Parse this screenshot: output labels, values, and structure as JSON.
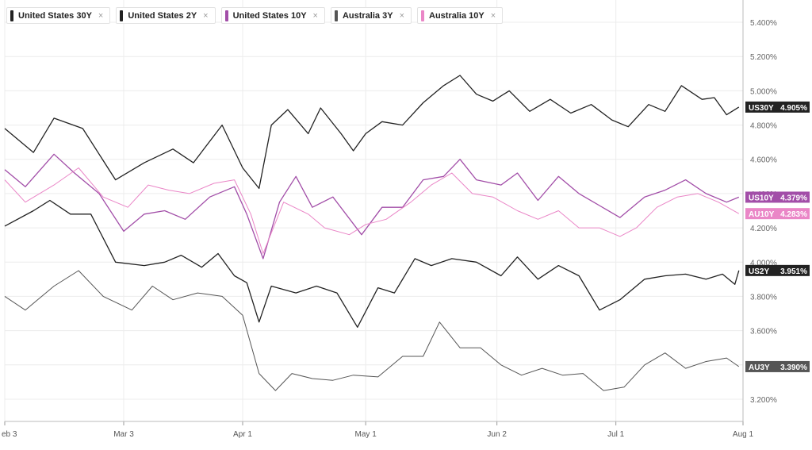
{
  "legend": [
    {
      "label": "United States 30Y",
      "color": "#222222",
      "close": "×"
    },
    {
      "label": "United States 2Y",
      "color": "#222222",
      "close": "×"
    },
    {
      "label": "United States 10Y",
      "color": "#a24ea8",
      "close": "×"
    },
    {
      "label": "Australia 3Y",
      "color": "#555555",
      "close": "×"
    },
    {
      "label": "Australia 10Y",
      "color": "#ea86c7",
      "close": "×"
    }
  ],
  "chart_data": {
    "type": "line",
    "title": "",
    "xlabel": "",
    "ylabel": "",
    "x_ticks": [
      "eb 3",
      "Mar 3",
      "Apr 1",
      "May 1",
      "Jun 2",
      "Jul 1",
      "Aug 1"
    ],
    "y_ticks": [
      "3.200%",
      "3.400%",
      "3.600%",
      "3.800%",
      "4.000%",
      "4.200%",
      "4.400%",
      "4.600%",
      "4.800%",
      "5.000%",
      "5.200%",
      "5.400%"
    ],
    "ylim": [
      3.07,
      5.53
    ],
    "xlim": [
      "2024-02-03",
      "2024-08-01"
    ],
    "grid": true,
    "series": [
      {
        "name": "United States 30Y",
        "short": "US30Y",
        "last_label": "4.905%",
        "color": "#222222",
        "width": 1.3,
        "points": [
          [
            "2024-02-03",
            4.78
          ],
          [
            "2024-02-10",
            4.64
          ],
          [
            "2024-02-15",
            4.84
          ],
          [
            "2024-02-22",
            4.78
          ],
          [
            "2024-03-01",
            4.48
          ],
          [
            "2024-03-08",
            4.58
          ],
          [
            "2024-03-15",
            4.66
          ],
          [
            "2024-03-20",
            4.58
          ],
          [
            "2024-03-27",
            4.8
          ],
          [
            "2024-04-01",
            4.55
          ],
          [
            "2024-04-05",
            4.43
          ],
          [
            "2024-04-08",
            4.8
          ],
          [
            "2024-04-12",
            4.89
          ],
          [
            "2024-04-17",
            4.75
          ],
          [
            "2024-04-20",
            4.9
          ],
          [
            "2024-04-25",
            4.75
          ],
          [
            "2024-04-28",
            4.65
          ],
          [
            "2024-05-01",
            4.75
          ],
          [
            "2024-05-05",
            4.82
          ],
          [
            "2024-05-10",
            4.8
          ],
          [
            "2024-05-15",
            4.93
          ],
          [
            "2024-05-20",
            5.03
          ],
          [
            "2024-05-24",
            5.09
          ],
          [
            "2024-05-28",
            4.98
          ],
          [
            "2024-06-01",
            4.94
          ],
          [
            "2024-06-05",
            5.0
          ],
          [
            "2024-06-10",
            4.88
          ],
          [
            "2024-06-15",
            4.95
          ],
          [
            "2024-06-20",
            4.87
          ],
          [
            "2024-06-25",
            4.92
          ],
          [
            "2024-06-30",
            4.83
          ],
          [
            "2024-07-04",
            4.79
          ],
          [
            "2024-07-09",
            4.92
          ],
          [
            "2024-07-13",
            4.88
          ],
          [
            "2024-07-17",
            5.03
          ],
          [
            "2024-07-22",
            4.95
          ],
          [
            "2024-07-25",
            4.96
          ],
          [
            "2024-07-28",
            4.86
          ],
          [
            "2024-07-31",
            4.905
          ]
        ]
      },
      {
        "name": "United States 2Y",
        "short": "US2Y",
        "last_label": "3.951%",
        "color": "#222222",
        "width": 1.3,
        "points": [
          [
            "2024-02-03",
            4.21
          ],
          [
            "2024-02-10",
            4.3
          ],
          [
            "2024-02-14",
            4.36
          ],
          [
            "2024-02-19",
            4.28
          ],
          [
            "2024-02-24",
            4.28
          ],
          [
            "2024-03-01",
            4.0
          ],
          [
            "2024-03-08",
            3.98
          ],
          [
            "2024-03-13",
            4.0
          ],
          [
            "2024-03-17",
            4.04
          ],
          [
            "2024-03-22",
            3.97
          ],
          [
            "2024-03-26",
            4.05
          ],
          [
            "2024-03-30",
            3.92
          ],
          [
            "2024-04-02",
            3.88
          ],
          [
            "2024-04-05",
            3.65
          ],
          [
            "2024-04-08",
            3.86
          ],
          [
            "2024-04-14",
            3.82
          ],
          [
            "2024-04-19",
            3.86
          ],
          [
            "2024-04-24",
            3.82
          ],
          [
            "2024-04-29",
            3.62
          ],
          [
            "2024-05-04",
            3.85
          ],
          [
            "2024-05-08",
            3.82
          ],
          [
            "2024-05-13",
            4.02
          ],
          [
            "2024-05-17",
            3.98
          ],
          [
            "2024-05-22",
            4.02
          ],
          [
            "2024-05-28",
            4.0
          ],
          [
            "2024-06-03",
            3.92
          ],
          [
            "2024-06-07",
            4.03
          ],
          [
            "2024-06-12",
            3.9
          ],
          [
            "2024-06-17",
            3.98
          ],
          [
            "2024-06-22",
            3.92
          ],
          [
            "2024-06-27",
            3.72
          ],
          [
            "2024-07-02",
            3.78
          ],
          [
            "2024-07-08",
            3.9
          ],
          [
            "2024-07-13",
            3.92
          ],
          [
            "2024-07-18",
            3.93
          ],
          [
            "2024-07-23",
            3.9
          ],
          [
            "2024-07-27",
            3.93
          ],
          [
            "2024-07-30",
            3.87
          ],
          [
            "2024-07-31",
            3.951
          ]
        ]
      },
      {
        "name": "United States 10Y",
        "short": "US10Y",
        "last_label": "4.379%",
        "color": "#a24ea8",
        "width": 1.3,
        "points": [
          [
            "2024-02-03",
            4.54
          ],
          [
            "2024-02-08",
            4.44
          ],
          [
            "2024-02-15",
            4.63
          ],
          [
            "2024-02-20",
            4.52
          ],
          [
            "2024-02-26",
            4.4
          ],
          [
            "2024-03-03",
            4.18
          ],
          [
            "2024-03-08",
            4.28
          ],
          [
            "2024-03-13",
            4.3
          ],
          [
            "2024-03-18",
            4.25
          ],
          [
            "2024-03-24",
            4.38
          ],
          [
            "2024-03-30",
            4.44
          ],
          [
            "2024-04-02",
            4.28
          ],
          [
            "2024-04-06",
            4.02
          ],
          [
            "2024-04-10",
            4.35
          ],
          [
            "2024-04-14",
            4.5
          ],
          [
            "2024-04-18",
            4.32
          ],
          [
            "2024-04-23",
            4.38
          ],
          [
            "2024-04-30",
            4.16
          ],
          [
            "2024-05-05",
            4.32
          ],
          [
            "2024-05-10",
            4.32
          ],
          [
            "2024-05-15",
            4.48
          ],
          [
            "2024-05-20",
            4.5
          ],
          [
            "2024-05-24",
            4.6
          ],
          [
            "2024-05-28",
            4.48
          ],
          [
            "2024-06-03",
            4.45
          ],
          [
            "2024-06-07",
            4.52
          ],
          [
            "2024-06-12",
            4.36
          ],
          [
            "2024-06-17",
            4.5
          ],
          [
            "2024-06-22",
            4.4
          ],
          [
            "2024-06-27",
            4.33
          ],
          [
            "2024-07-02",
            4.26
          ],
          [
            "2024-07-08",
            4.38
          ],
          [
            "2024-07-13",
            4.42
          ],
          [
            "2024-07-18",
            4.48
          ],
          [
            "2024-07-23",
            4.4
          ],
          [
            "2024-07-28",
            4.35
          ],
          [
            "2024-07-31",
            4.379
          ]
        ]
      },
      {
        "name": "Australia 3Y",
        "short": "AU3Y",
        "last_label": "3.390%",
        "color": "#555555",
        "width": 1.0,
        "points": [
          [
            "2024-02-03",
            3.8
          ],
          [
            "2024-02-08",
            3.72
          ],
          [
            "2024-02-15",
            3.86
          ],
          [
            "2024-02-21",
            3.95
          ],
          [
            "2024-02-27",
            3.8
          ],
          [
            "2024-03-05",
            3.72
          ],
          [
            "2024-03-10",
            3.86
          ],
          [
            "2024-03-15",
            3.78
          ],
          [
            "2024-03-21",
            3.82
          ],
          [
            "2024-03-27",
            3.8
          ],
          [
            "2024-04-01",
            3.69
          ],
          [
            "2024-04-05",
            3.35
          ],
          [
            "2024-04-09",
            3.25
          ],
          [
            "2024-04-13",
            3.35
          ],
          [
            "2024-04-18",
            3.32
          ],
          [
            "2024-04-23",
            3.31
          ],
          [
            "2024-04-28",
            3.34
          ],
          [
            "2024-05-04",
            3.33
          ],
          [
            "2024-05-10",
            3.45
          ],
          [
            "2024-05-15",
            3.45
          ],
          [
            "2024-05-19",
            3.65
          ],
          [
            "2024-05-24",
            3.5
          ],
          [
            "2024-05-29",
            3.5
          ],
          [
            "2024-06-03",
            3.4
          ],
          [
            "2024-06-08",
            3.34
          ],
          [
            "2024-06-13",
            3.38
          ],
          [
            "2024-06-18",
            3.34
          ],
          [
            "2024-06-23",
            3.35
          ],
          [
            "2024-06-28",
            3.25
          ],
          [
            "2024-07-03",
            3.27
          ],
          [
            "2024-07-08",
            3.4
          ],
          [
            "2024-07-13",
            3.47
          ],
          [
            "2024-07-18",
            3.38
          ],
          [
            "2024-07-23",
            3.42
          ],
          [
            "2024-07-28",
            3.44
          ],
          [
            "2024-07-31",
            3.39
          ]
        ]
      },
      {
        "name": "Australia 10Y",
        "short": "AU10Y",
        "last_label": "4.283%",
        "color": "#ea86c7",
        "width": 1.0,
        "points": [
          [
            "2024-02-03",
            4.48
          ],
          [
            "2024-02-08",
            4.35
          ],
          [
            "2024-02-15",
            4.45
          ],
          [
            "2024-02-21",
            4.55
          ],
          [
            "2024-02-27",
            4.38
          ],
          [
            "2024-03-04",
            4.32
          ],
          [
            "2024-03-09",
            4.45
          ],
          [
            "2024-03-14",
            4.42
          ],
          [
            "2024-03-19",
            4.4
          ],
          [
            "2024-03-25",
            4.46
          ],
          [
            "2024-03-30",
            4.48
          ],
          [
            "2024-04-03",
            4.28
          ],
          [
            "2024-04-06",
            4.05
          ],
          [
            "2024-04-11",
            4.35
          ],
          [
            "2024-04-17",
            4.28
          ],
          [
            "2024-04-21",
            4.2
          ],
          [
            "2024-04-27",
            4.16
          ],
          [
            "2024-05-01",
            4.22
          ],
          [
            "2024-05-06",
            4.25
          ],
          [
            "2024-05-12",
            4.35
          ],
          [
            "2024-05-17",
            4.45
          ],
          [
            "2024-05-22",
            4.52
          ],
          [
            "2024-05-27",
            4.4
          ],
          [
            "2024-06-01",
            4.38
          ],
          [
            "2024-06-07",
            4.3
          ],
          [
            "2024-06-12",
            4.25
          ],
          [
            "2024-06-17",
            4.3
          ],
          [
            "2024-06-22",
            4.2
          ],
          [
            "2024-06-27",
            4.2
          ],
          [
            "2024-07-02",
            4.15
          ],
          [
            "2024-07-06",
            4.2
          ],
          [
            "2024-07-11",
            4.32
          ],
          [
            "2024-07-16",
            4.38
          ],
          [
            "2024-07-21",
            4.4
          ],
          [
            "2024-07-26",
            4.35
          ],
          [
            "2024-07-31",
            4.283
          ]
        ]
      }
    ]
  }
}
